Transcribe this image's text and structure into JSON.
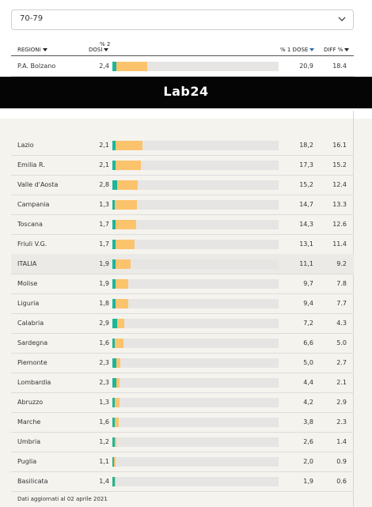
{
  "dropdown": "70-79",
  "banner": "Lab24",
  "header": {
    "region": "REGIONI",
    "dose2_top": "% 2",
    "dose2_bottom": "DOSI",
    "dose1": "% 1 DOSE",
    "diff": "DIFF %"
  },
  "colors": {
    "dose2": "#1eb59a",
    "diff": "#fcc36d"
  },
  "rows": [
    {
      "region": "P.A. Bolzano",
      "dose2": {
        "value": 2.4,
        "label": "2,4"
      },
      "dose1": {
        "value": 20.9,
        "label": "20,9"
      },
      "diff": 18.4
    },
    {
      "region": "Lazio",
      "dose2": {
        "value": 2.1,
        "label": "2,1"
      },
      "dose1": {
        "value": 18.2,
        "label": "18,2"
      },
      "diff": 16.1
    },
    {
      "region": "Emilia R.",
      "dose2": {
        "value": 2.1,
        "label": "2,1"
      },
      "dose1": {
        "value": 17.3,
        "label": "17,3"
      },
      "diff": 15.2
    },
    {
      "region": "Valle d'Aosta",
      "dose2": {
        "value": 2.8,
        "label": "2,8"
      },
      "dose1": {
        "value": 15.2,
        "label": "15,2"
      },
      "diff": 12.4
    },
    {
      "region": "Campania",
      "dose2": {
        "value": 1.3,
        "label": "1,3"
      },
      "dose1": {
        "value": 14.7,
        "label": "14,7"
      },
      "diff": 13.3
    },
    {
      "region": "Toscana",
      "dose2": {
        "value": 1.7,
        "label": "1,7"
      },
      "dose1": {
        "value": 14.3,
        "label": "14,3"
      },
      "diff": 12.6
    },
    {
      "region": "Friuli V.G.",
      "dose2": {
        "value": 1.7,
        "label": "1,7"
      },
      "dose1": {
        "value": 13.1,
        "label": "13,1"
      },
      "diff": 11.4
    },
    {
      "region": "ITALIA",
      "dose2": {
        "value": 1.9,
        "label": "1,9"
      },
      "dose1": {
        "value": 11.1,
        "label": "11,1"
      },
      "diff": 9.2
    },
    {
      "region": "Molise",
      "dose2": {
        "value": 1.9,
        "label": "1,9"
      },
      "dose1": {
        "value": 9.7,
        "label": "9,7"
      },
      "diff": 7.8
    },
    {
      "region": "Liguria",
      "dose2": {
        "value": 1.8,
        "label": "1,8"
      },
      "dose1": {
        "value": 9.4,
        "label": "9,4"
      },
      "diff": 7.7
    },
    {
      "region": "Calabria",
      "dose2": {
        "value": 2.9,
        "label": "2,9"
      },
      "dose1": {
        "value": 7.2,
        "label": "7,2"
      },
      "diff": 4.3
    },
    {
      "region": "Sardegna",
      "dose2": {
        "value": 1.6,
        "label": "1,6"
      },
      "dose1": {
        "value": 6.6,
        "label": "6,6"
      },
      "diff": {
        "value": 5,
        "label": "5.0"
      }
    },
    {
      "region": "Piemonte",
      "dose2": {
        "value": 2.3,
        "label": "2,3"
      },
      "dose1": {
        "value": 5,
        "label": "5,0"
      },
      "diff": 2.7
    },
    {
      "region": "Lombardia",
      "dose2": {
        "value": 2.3,
        "label": "2,3"
      },
      "dose1": {
        "value": 4.4,
        "label": "4,4"
      },
      "diff": 2.1
    },
    {
      "region": "Abruzzo",
      "dose2": {
        "value": 1.3,
        "label": "1,3"
      },
      "dose1": {
        "value": 4.2,
        "label": "4,2"
      },
      "diff": 2.9
    },
    {
      "region": "Marche",
      "dose2": {
        "value": 1.6,
        "label": "1,6"
      },
      "dose1": {
        "value": 3.8,
        "label": "3,8"
      },
      "diff": 2.3
    },
    {
      "region": "Umbria",
      "dose2": {
        "value": 1.2,
        "label": "1,2"
      },
      "dose1": {
        "value": 2.6,
        "label": "2,6"
      },
      "diff": 1.4
    },
    {
      "region": "Puglia",
      "dose2": {
        "value": 1.1,
        "label": "1,1"
      },
      "dose1": {
        "value": 2,
        "label": "2,0"
      },
      "diff": 0.9
    },
    {
      "region": "Basilicata",
      "dose2": {
        "value": 1.4,
        "label": "1,4"
      },
      "dose1": {
        "value": 1.9,
        "label": "1,9"
      },
      "diff": 0.6
    }
  ],
  "footer": "Dati aggiornati al 02 aprile 2021"
}
